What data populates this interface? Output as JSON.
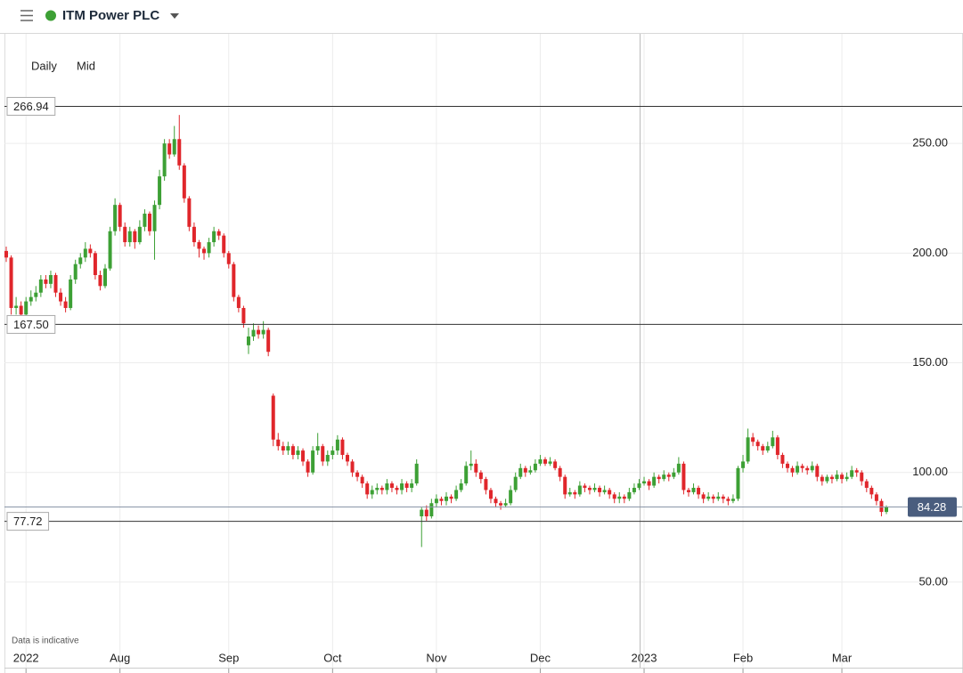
{
  "chart_data": {
    "type": "candlestick",
    "title": "ITM Power PLC",
    "interval": "Daily",
    "price_type": "Mid",
    "note": "Data is indicative",
    "up_color": "#3da035",
    "down_color": "#e0262b",
    "grid": true,
    "ylim": [
      11,
      300
    ],
    "yticks": [
      {
        "value": 50,
        "label": "50.00"
      },
      {
        "value": 100,
        "label": "100.00"
      },
      {
        "value": 150,
        "label": "150.00"
      },
      {
        "value": 200,
        "label": "200.00"
      },
      {
        "value": 250,
        "label": "250.00"
      }
    ],
    "levels": [
      266.94,
      {
        "value": 167.5,
        "label": "167.50"
      },
      77.72
    ],
    "last_price": 84.28,
    "categories": [
      null,
      null,
      null,
      null,
      "2022",
      null,
      null,
      null,
      null,
      null,
      null,
      null,
      null,
      null,
      null,
      null,
      null,
      null,
      null,
      null,
      null,
      null,
      null,
      "Aug",
      null,
      null,
      null,
      null,
      null,
      null,
      null,
      null,
      null,
      null,
      null,
      null,
      null,
      null,
      null,
      null,
      null,
      null,
      null,
      null,
      null,
      "Sep",
      null,
      null,
      null,
      null,
      null,
      null,
      null,
      null,
      null,
      null,
      null,
      null,
      null,
      null,
      null,
      null,
      null,
      null,
      null,
      null,
      "Oct",
      null,
      null,
      null,
      null,
      null,
      null,
      null,
      null,
      null,
      null,
      null,
      null,
      null,
      null,
      null,
      null,
      null,
      null,
      null,
      null,
      "Nov",
      null,
      null,
      null,
      null,
      null,
      null,
      null,
      null,
      null,
      null,
      null,
      null,
      null,
      null,
      null,
      null,
      null,
      null,
      null,
      null,
      "Dec",
      null,
      null,
      null,
      null,
      null,
      null,
      null,
      null,
      null,
      null,
      null,
      null,
      null,
      null,
      null,
      null,
      null,
      null,
      null,
      null,
      "2023",
      null,
      null,
      null,
      null,
      null,
      null,
      null,
      null,
      null,
      null,
      null,
      null,
      null,
      null,
      null,
      null,
      null,
      null,
      null,
      "Feb",
      null,
      null,
      null,
      null,
      null,
      null,
      null,
      null,
      null,
      null,
      null,
      null,
      null,
      null,
      null,
      null,
      null,
      null,
      null,
      "Mar",
      null,
      null,
      null,
      null,
      null,
      null,
      null,
      null,
      null
    ],
    "ohlc": [
      [
        201,
        203,
        196,
        198
      ],
      [
        198,
        199,
        172,
        175
      ],
      [
        175,
        180,
        172,
        176
      ],
      [
        176,
        178,
        170,
        172
      ],
      [
        172,
        180,
        170,
        178
      ],
      [
        178,
        183,
        176,
        180
      ],
      [
        180,
        185,
        178,
        182
      ],
      [
        182,
        190,
        180,
        188
      ],
      [
        188,
        190,
        184,
        186
      ],
      [
        186,
        192,
        184,
        190
      ],
      [
        190,
        191,
        180,
        182
      ],
      [
        182,
        184,
        176,
        178
      ],
      [
        178,
        180,
        173,
        175
      ],
      [
        175,
        190,
        174,
        188
      ],
      [
        188,
        197,
        186,
        195
      ],
      [
        195,
        200,
        193,
        198
      ],
      [
        198,
        205,
        196,
        202
      ],
      [
        202,
        204,
        198,
        200
      ],
      [
        200,
        201,
        188,
        190
      ],
      [
        190,
        192,
        183,
        185
      ],
      [
        185,
        195,
        184,
        193
      ],
      [
        193,
        212,
        192,
        210
      ],
      [
        210,
        225,
        208,
        222
      ],
      [
        222,
        223,
        210,
        212
      ],
      [
        212,
        214,
        203,
        205
      ],
      [
        205,
        212,
        203,
        210
      ],
      [
        210,
        211,
        202,
        205
      ],
      [
        205,
        215,
        204,
        212
      ],
      [
        212,
        220,
        210,
        218
      ],
      [
        218,
        219,
        208,
        210
      ],
      [
        210,
        224,
        197,
        222
      ],
      [
        222,
        238,
        220,
        235
      ],
      [
        235,
        252,
        233,
        250
      ],
      [
        250,
        252,
        243,
        245
      ],
      [
        245,
        258,
        244,
        252
      ],
      [
        252,
        263,
        238,
        240
      ],
      [
        240,
        241,
        223,
        225
      ],
      [
        225,
        226,
        210,
        212
      ],
      [
        212,
        214,
        203,
        205
      ],
      [
        205,
        206,
        198,
        202
      ],
      [
        202,
        203,
        197,
        200
      ],
      [
        200,
        207,
        198,
        205
      ],
      [
        205,
        212,
        203,
        210
      ],
      [
        210,
        211,
        206,
        208
      ],
      [
        208,
        209,
        198,
        200
      ],
      [
        200,
        201,
        193,
        195
      ],
      [
        195,
        196,
        178,
        180
      ],
      [
        180,
        181,
        173,
        175
      ],
      [
        175,
        176,
        166,
        168
      ],
      [
        158,
        166,
        154,
        162
      ],
      [
        162,
        168,
        160,
        165
      ],
      [
        165,
        167,
        161,
        163
      ],
      [
        163,
        169,
        161,
        165
      ],
      [
        165,
        166,
        153,
        155
      ],
      [
        135,
        136,
        112,
        115
      ],
      [
        115,
        118,
        110,
        112
      ],
      [
        112,
        114,
        108,
        110
      ],
      [
        110,
        114,
        108,
        112
      ],
      [
        112,
        113,
        106,
        108
      ],
      [
        108,
        112,
        106,
        110
      ],
      [
        110,
        111,
        103,
        105
      ],
      [
        105,
        106,
        98,
        100
      ],
      [
        100,
        112,
        99,
        110
      ],
      [
        110,
        118,
        108,
        112
      ],
      [
        112,
        113,
        103,
        105
      ],
      [
        105,
        110,
        103,
        108
      ],
      [
        108,
        112,
        106,
        110
      ],
      [
        110,
        117,
        108,
        115
      ],
      [
        115,
        116,
        106,
        108
      ],
      [
        108,
        109,
        103,
        105
      ],
      [
        105,
        106,
        98,
        100
      ],
      [
        100,
        101,
        96,
        98
      ],
      [
        98,
        99,
        93,
        95
      ],
      [
        95,
        96,
        88,
        90
      ],
      [
        90,
        94,
        88,
        92
      ],
      [
        92,
        95,
        90,
        93
      ],
      [
        93,
        94,
        90,
        92
      ],
      [
        92,
        97,
        90,
        95
      ],
      [
        95,
        96,
        91,
        93
      ],
      [
        93,
        94,
        90,
        92
      ],
      [
        92,
        97,
        90,
        95
      ],
      [
        95,
        96,
        91,
        93
      ],
      [
        93,
        97,
        91,
        95
      ],
      [
        95,
        106,
        94,
        104
      ],
      [
        80,
        84,
        66,
        83
      ],
      [
        83,
        85,
        78,
        80
      ],
      [
        80,
        88,
        79,
        86
      ],
      [
        86,
        90,
        84,
        88
      ],
      [
        88,
        89,
        85,
        87
      ],
      [
        87,
        91,
        85,
        89
      ],
      [
        89,
        90,
        86,
        88
      ],
      [
        88,
        94,
        87,
        92
      ],
      [
        92,
        97,
        91,
        95
      ],
      [
        95,
        105,
        94,
        103
      ],
      [
        103,
        110,
        101,
        104
      ],
      [
        104,
        106,
        98,
        100
      ],
      [
        100,
        101,
        95,
        97
      ],
      [
        97,
        98,
        90,
        92
      ],
      [
        92,
        93,
        86,
        88
      ],
      [
        88,
        89,
        84,
        86
      ],
      [
        86,
        87,
        83,
        85
      ],
      [
        85,
        88,
        84,
        86
      ],
      [
        86,
        94,
        85,
        92
      ],
      [
        92,
        100,
        91,
        98
      ],
      [
        98,
        104,
        97,
        102
      ],
      [
        102,
        103,
        98,
        100
      ],
      [
        100,
        103,
        99,
        101
      ],
      [
        101,
        106,
        100,
        104
      ],
      [
        104,
        108,
        103,
        106
      ],
      [
        106,
        107,
        103,
        104
      ],
      [
        104,
        107,
        103,
        105
      ],
      [
        105,
        106,
        101,
        102
      ],
      [
        102,
        103,
        96,
        98
      ],
      [
        98,
        99,
        88,
        90
      ],
      [
        90,
        93,
        89,
        91
      ],
      [
        91,
        92,
        88,
        90
      ],
      [
        90,
        96,
        89,
        94
      ],
      [
        94,
        95,
        91,
        93
      ],
      [
        93,
        94,
        90,
        92
      ],
      [
        92,
        95,
        91,
        93
      ],
      [
        93,
        94,
        89,
        91
      ],
      [
        91,
        94,
        90,
        92
      ],
      [
        92,
        93,
        88,
        90
      ],
      [
        90,
        91,
        86,
        88
      ],
      [
        88,
        91,
        86,
        89
      ],
      [
        89,
        90,
        86,
        88
      ],
      [
        88,
        93,
        87,
        91
      ],
      [
        91,
        95,
        90,
        93
      ],
      [
        93,
        97,
        92,
        95
      ],
      [
        95,
        98,
        94,
        96
      ],
      [
        96,
        97,
        92,
        94
      ],
      [
        94,
        100,
        93,
        98
      ],
      [
        98,
        99,
        95,
        97
      ],
      [
        97,
        101,
        96,
        99
      ],
      [
        99,
        100,
        96,
        98
      ],
      [
        98,
        102,
        97,
        100
      ],
      [
        100,
        107,
        99,
        104
      ],
      [
        104,
        105,
        90,
        92
      ],
      [
        92,
        93,
        89,
        91
      ],
      [
        91,
        95,
        90,
        93
      ],
      [
        93,
        94,
        88,
        90
      ],
      [
        90,
        91,
        86,
        88
      ],
      [
        88,
        91,
        87,
        89
      ],
      [
        89,
        90,
        86,
        88
      ],
      [
        88,
        91,
        87,
        89
      ],
      [
        89,
        90,
        86,
        88
      ],
      [
        88,
        89,
        85,
        87
      ],
      [
        87,
        90,
        86,
        88
      ],
      [
        88,
        103,
        87,
        102
      ],
      [
        102,
        108,
        100,
        105
      ],
      [
        105,
        120,
        104,
        116
      ],
      [
        116,
        118,
        112,
        114
      ],
      [
        114,
        115,
        110,
        112
      ],
      [
        112,
        113,
        108,
        110
      ],
      [
        110,
        114,
        109,
        112
      ],
      [
        112,
        119,
        111,
        116
      ],
      [
        116,
        117,
        106,
        108
      ],
      [
        108,
        109,
        102,
        104
      ],
      [
        104,
        105,
        100,
        102
      ],
      [
        102,
        103,
        98,
        100
      ],
      [
        100,
        105,
        99,
        103
      ],
      [
        103,
        104,
        100,
        102
      ],
      [
        102,
        103,
        99,
        101
      ],
      [
        101,
        105,
        100,
        103
      ],
      [
        103,
        104,
        96,
        98
      ],
      [
        98,
        99,
        94,
        96
      ],
      [
        96,
        99,
        95,
        98
      ],
      [
        98,
        99,
        95,
        97
      ],
      [
        97,
        101,
        96,
        99
      ],
      [
        99,
        100,
        95,
        97
      ],
      [
        97,
        100,
        96,
        98
      ],
      [
        98,
        103,
        97,
        101
      ],
      [
        101,
        102,
        98,
        100
      ],
      [
        100,
        101,
        94,
        96
      ],
      [
        96,
        97,
        91,
        93
      ],
      [
        93,
        94,
        88,
        90
      ],
      [
        90,
        91,
        85,
        87
      ],
      [
        87,
        88,
        80,
        82
      ],
      [
        82,
        85,
        81,
        84.28
      ]
    ]
  }
}
